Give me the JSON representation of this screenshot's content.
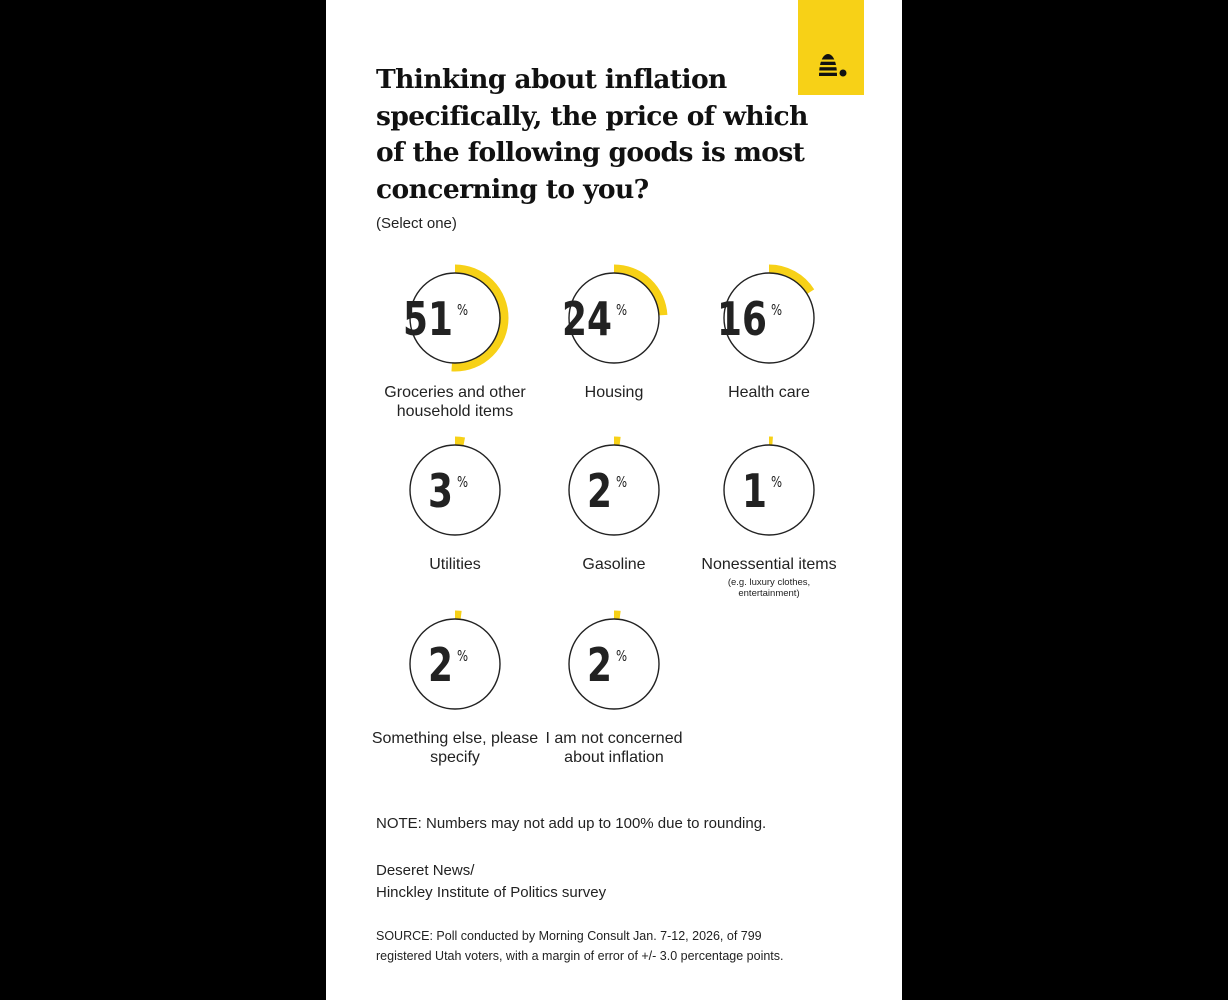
{
  "chart_data": {
    "type": "donut",
    "title": "Thinking about inflation specifically, the price of which of the following goods is most concerning to you?",
    "subtitle": "(Select one)",
    "unit": "%",
    "items": [
      {
        "label": "Groceries and other household items",
        "value": 51,
        "sublabel": ""
      },
      {
        "label": "Housing",
        "value": 24,
        "sublabel": ""
      },
      {
        "label": "Health care",
        "value": 16,
        "sublabel": ""
      },
      {
        "label": "Utilities",
        "value": 3,
        "sublabel": ""
      },
      {
        "label": "Gasoline",
        "value": 2,
        "sublabel": ""
      },
      {
        "label": "Nonessential items",
        "value": 1,
        "sublabel": "(e.g. luxury clothes, entertainment)"
      },
      {
        "label": "Something else, please specify",
        "value": 2,
        "sublabel": ""
      },
      {
        "label": "I am not concerned about inflation",
        "value": 2,
        "sublabel": ""
      }
    ],
    "max": 100
  },
  "footer": {
    "note": "NOTE: Numbers may not add up to 100% due to rounding.",
    "credit_line1": "Deseret News/",
    "credit_line2": "Hinckley Institute of Politics survey",
    "source_line1": "SOURCE: Poll conducted by Morning Consult Jan. 7-12, 2026, of 799",
    "source_line2": "registered Utah voters, with a margin of error of +/- 3.0 percentage points."
  },
  "colors": {
    "accent": "#f7d117",
    "ring": "#222222",
    "background": "#ffffff",
    "text": "#111111"
  },
  "brand": {
    "logo_icon": "beehive-icon"
  }
}
